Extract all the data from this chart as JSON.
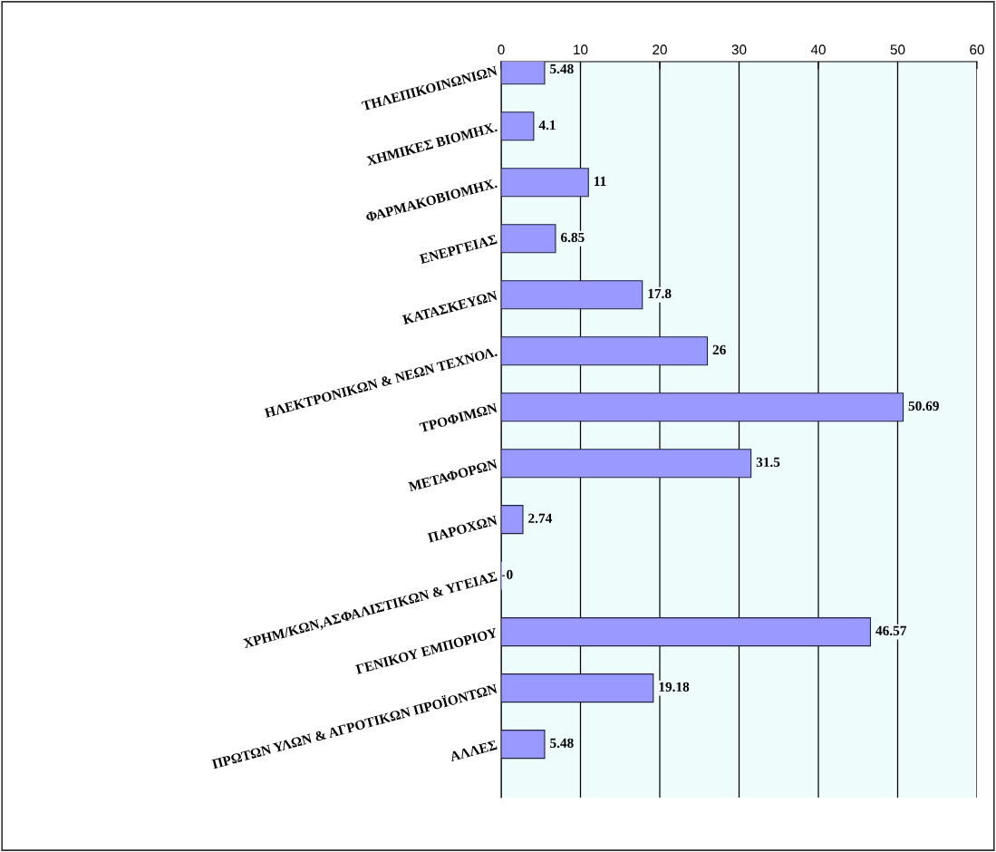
{
  "chart_data": {
    "type": "bar",
    "orientation": "horizontal",
    "categories": [
      "ΤΗΛΕΠΙΚΟΙΝΩΝΙΩΝ",
      "ΧΗΜΙΚΕΣ ΒΙΟΜΗΧ.",
      "ΦΑΡΜΑΚΟΒΙΟΜΗΧ.",
      "ΕΝΕΡΓΕΙΑΣ",
      "ΚΑΤΑΣΚΕΥΩΝ",
      "ΗΛΕΚΤΡΟΝΙΚΩΝ & ΝΕΩΝ ΤΕΧΝΟΛ.",
      "ΤΡΟΦΙΜΩΝ",
      "ΜΕΤΑΦΟΡΩΝ",
      "ΠΑΡΟΧΩΝ",
      "ΧΡΗΜ/ΚΩΝ,ΑΣΦΑΛΙΣΤΙΚΩΝ & ΥΓΕΙΑΣ",
      "ΓΕΝΙΚΟΥ ΕΜΠΟΡΙΟΥ",
      "ΠΡΩΤΩΝ ΥΛΩΝ & ΑΓΡΟΤΙΚΩΝ ΠΡΟΪΟΝΤΩΝ",
      "ΑΛΛΕΣ"
    ],
    "values": [
      5.48,
      4.1,
      11,
      6.85,
      17.8,
      26,
      50.69,
      31.5,
      2.74,
      0,
      46.57,
      19.18,
      5.48
    ],
    "color": "#9999ff",
    "xlim": [
      0,
      60
    ],
    "xticks": [
      0,
      10,
      20,
      30,
      40,
      50,
      60
    ],
    "grid": "x",
    "data_labels": true
  }
}
